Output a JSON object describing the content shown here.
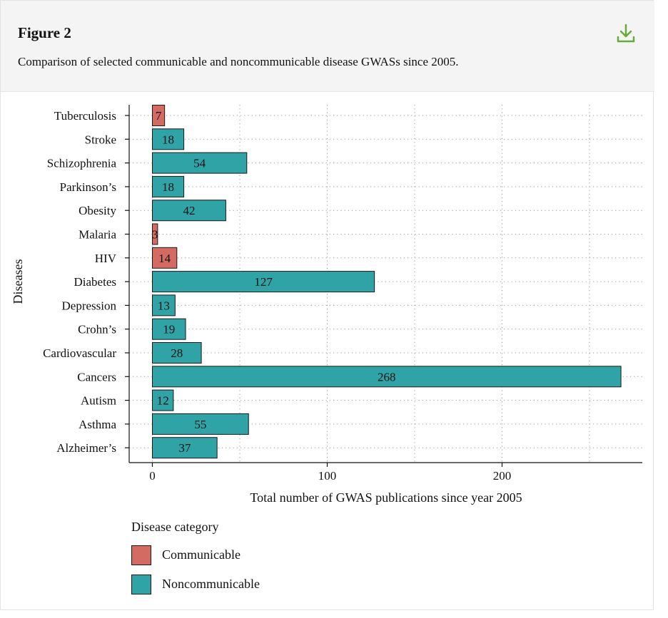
{
  "figure": {
    "title": "Figure 2",
    "caption": "Comparison of selected communicable and noncommunicable disease GWASs since 2005.",
    "download_icon": "download-icon"
  },
  "colors": {
    "communicable": "#d46b62",
    "noncommunicable": "#2fa3a6",
    "accent": "#6aaa3a"
  },
  "chart_data": {
    "type": "bar",
    "orientation": "horizontal",
    "ylabel": "Diseases",
    "xlabel": "Total number of GWAS publications since year 2005",
    "xlim": [
      -13,
      281
    ],
    "xticks": [
      0,
      100,
      200
    ],
    "grid": true,
    "categories": [
      "Tuberculosis",
      "Stroke",
      "Schizophrenia",
      "Parkinson’s",
      "Obesity",
      "Malaria",
      "HIV",
      "Diabetes",
      "Depression",
      "Crohn’s",
      "Cardiovascular",
      "Cancers",
      "Autism",
      "Asthma",
      "Alzheimer’s"
    ],
    "values": [
      7,
      18,
      54,
      18,
      42,
      3,
      14,
      127,
      13,
      19,
      28,
      268,
      12,
      55,
      37
    ],
    "groups": [
      "Communicable",
      "Noncommunicable",
      "Noncommunicable",
      "Noncommunicable",
      "Noncommunicable",
      "Communicable",
      "Communicable",
      "Noncommunicable",
      "Noncommunicable",
      "Noncommunicable",
      "Noncommunicable",
      "Noncommunicable",
      "Noncommunicable",
      "Noncommunicable",
      "Noncommunicable"
    ],
    "legend": {
      "title": "Disease category",
      "placement": "bottom-left",
      "entries": [
        "Communicable",
        "Noncommunicable"
      ]
    }
  }
}
